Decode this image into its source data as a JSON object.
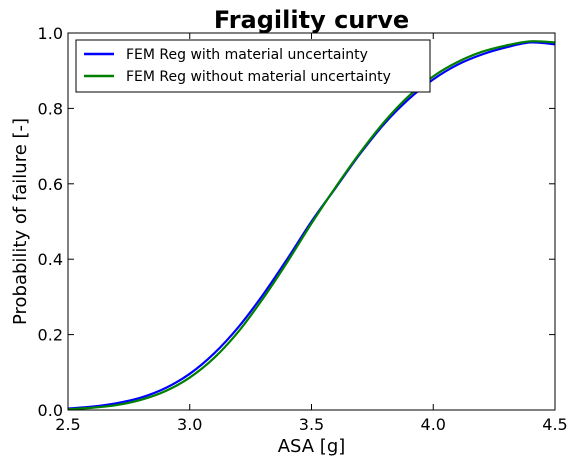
{
  "chart_data": {
    "type": "line",
    "title": "Fragility curve",
    "xlabel": "ASA [g]",
    "ylabel": "Probability of failure [-]",
    "xlim": [
      2.5,
      4.5
    ],
    "ylim": [
      0.0,
      1.0
    ],
    "xticks": [
      "2.5",
      "3.0",
      "3.5",
      "4.0",
      "4.5"
    ],
    "yticks": [
      "0.0",
      "0.2",
      "0.4",
      "0.6",
      "0.8",
      "1.0"
    ],
    "grid": false,
    "legend_position": "top-left",
    "series": [
      {
        "name": "FEM Reg with material uncertainty",
        "color": "#0000ff",
        "x": [
          2.5,
          2.6,
          2.7,
          2.8,
          2.9,
          3.0,
          3.1,
          3.2,
          3.3,
          3.4,
          3.5,
          3.6,
          3.7,
          3.8,
          3.9,
          4.0,
          4.1,
          4.2,
          4.3,
          4.4,
          4.5
        ],
        "y": [
          0.004,
          0.009,
          0.018,
          0.033,
          0.058,
          0.096,
          0.15,
          0.22,
          0.305,
          0.4,
          0.5,
          0.59,
          0.68,
          0.76,
          0.825,
          0.877,
          0.916,
          0.943,
          0.962,
          0.975,
          0.97
        ]
      },
      {
        "name": "FEM Reg without material uncertainty",
        "color": "#008000",
        "x": [
          2.5,
          2.6,
          2.7,
          2.8,
          2.9,
          3.0,
          3.1,
          3.2,
          3.3,
          3.4,
          3.5,
          3.6,
          3.7,
          3.8,
          3.9,
          4.0,
          4.1,
          4.2,
          4.3,
          4.4,
          4.5
        ],
        "y": [
          0.002,
          0.006,
          0.013,
          0.027,
          0.05,
          0.086,
          0.138,
          0.208,
          0.295,
          0.392,
          0.495,
          0.592,
          0.683,
          0.765,
          0.833,
          0.885,
          0.923,
          0.95,
          0.967,
          0.978,
          0.975
        ]
      }
    ]
  }
}
